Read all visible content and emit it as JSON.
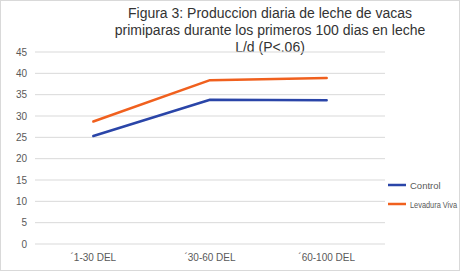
{
  "chart_data": {
    "type": "line",
    "title": "Figura 3: Produccion diaria de leche de vacas primiparas durante los primeros 100 dias en leche L/d (P<.06)",
    "categories": [
      "´1-30 DEL",
      "´30-60 DEL",
      "´60-100 DEL"
    ],
    "series": [
      {
        "name": "Control",
        "color": "#2a45a8",
        "values": [
          25.3,
          33.8,
          33.7
        ]
      },
      {
        "name": "Levadura Viva",
        "color": "#f0601e",
        "values": [
          28.7,
          38.4,
          38.9
        ]
      }
    ],
    "ylim": [
      0,
      45
    ],
    "yticks": [
      0,
      5,
      10,
      15,
      20,
      25,
      30,
      35,
      40,
      45
    ],
    "grid": true,
    "legend": "right"
  }
}
